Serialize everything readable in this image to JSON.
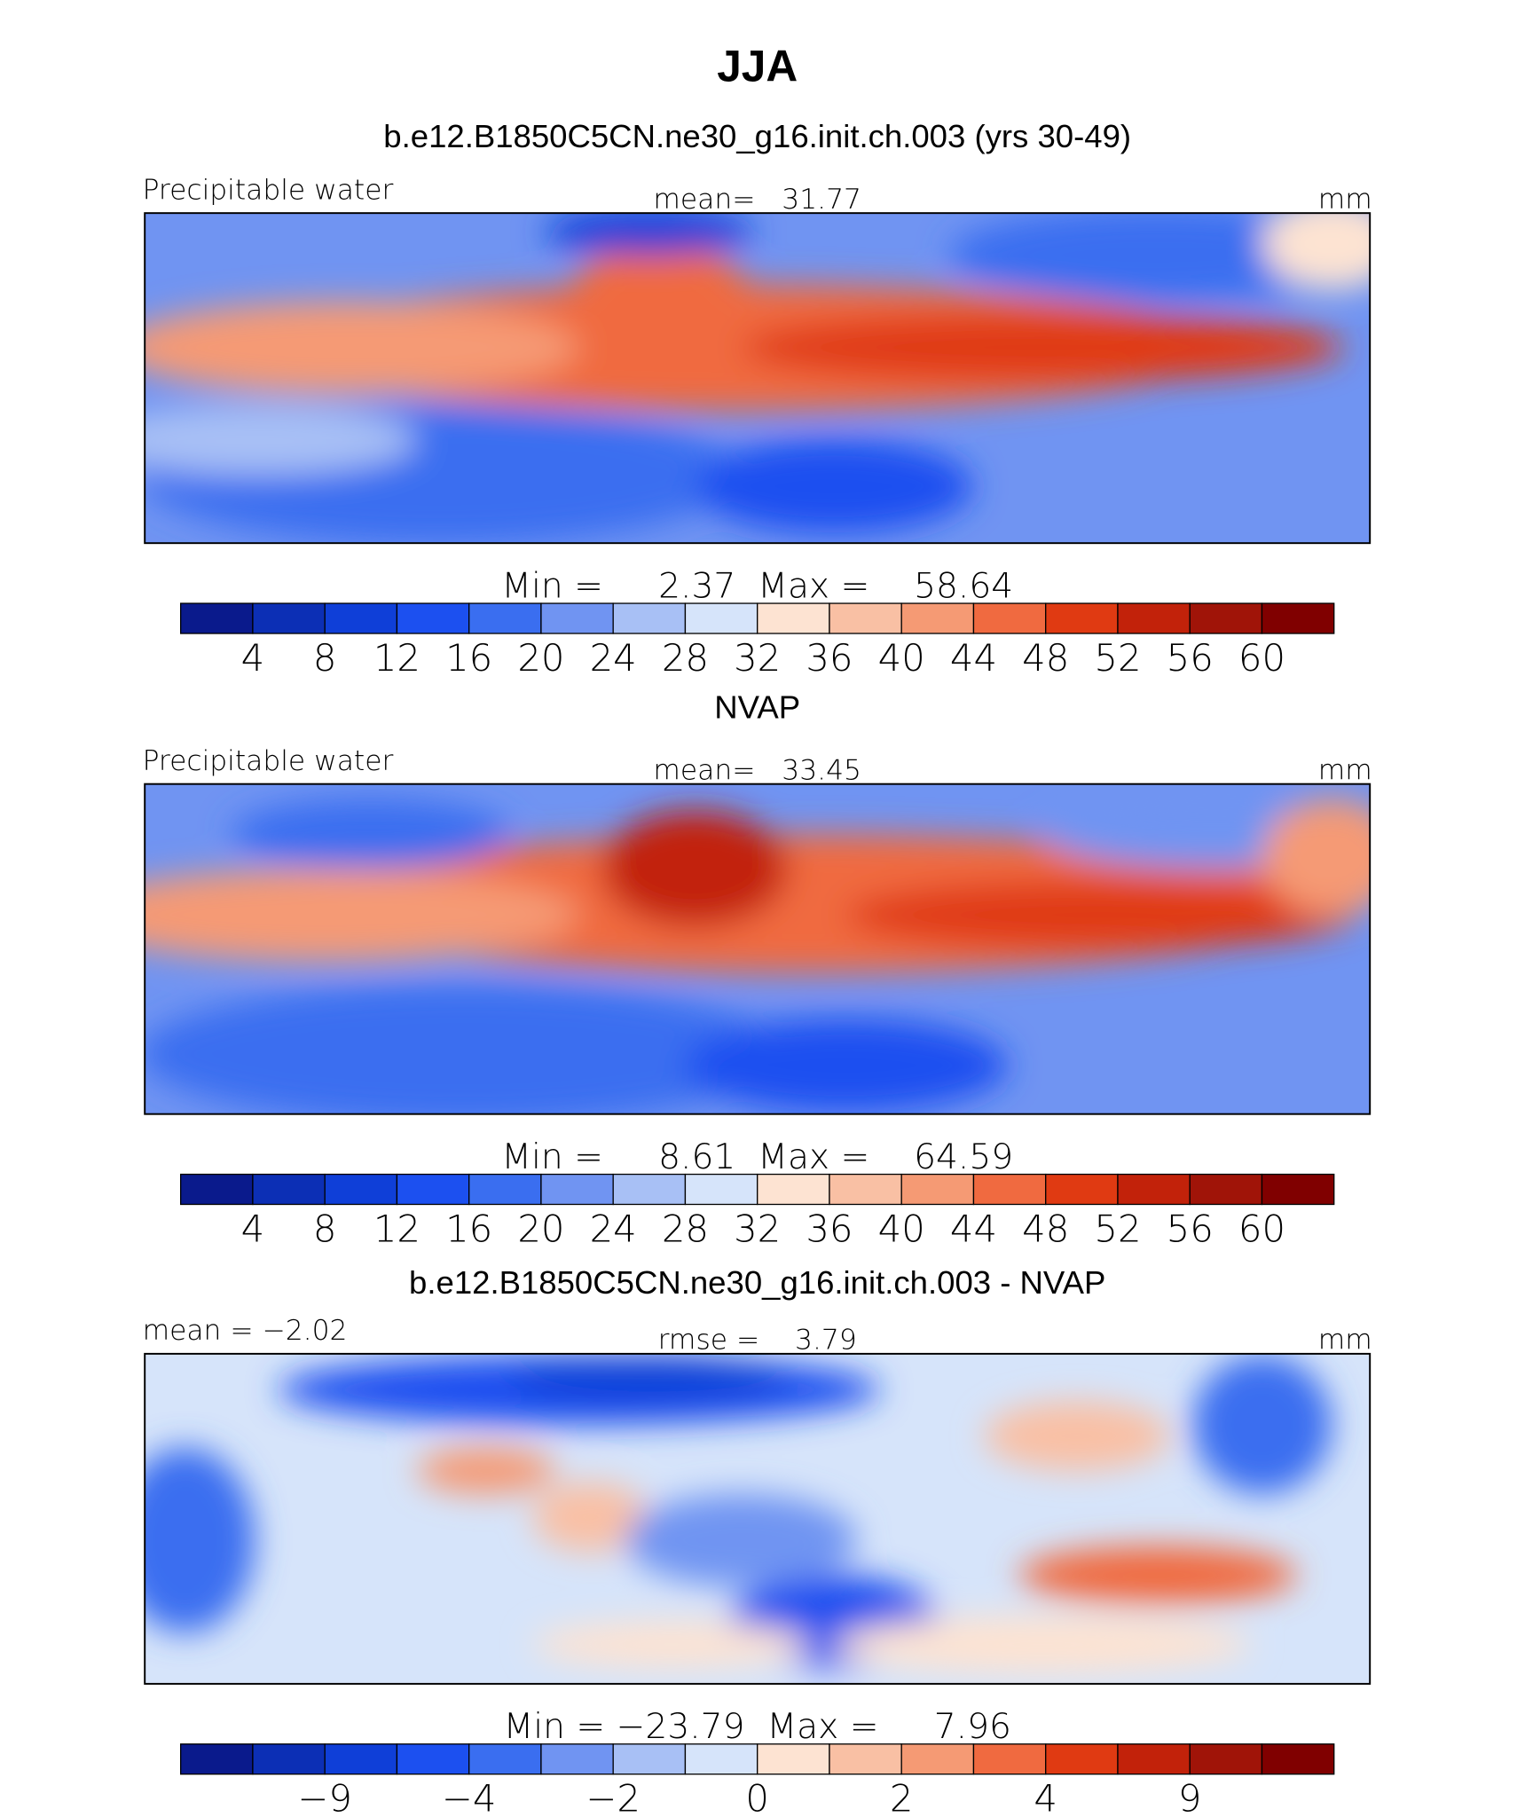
{
  "title": "JJA",
  "panels": [
    {
      "title": "b.e12.B1850C5CN.ne30_g16.init.ch.003 (yrs 30-49)",
      "left_label": "Precipitable water",
      "center_label": "mean=   31.77",
      "right_label": "mm",
      "stats": "Min =     2.37  Max =    58.64",
      "colorbar": {
        "labels": [
          "4",
          "8",
          "12",
          "16",
          "20",
          "24",
          "28",
          "32",
          "36",
          "40",
          "44",
          "48",
          "52",
          "56",
          "60"
        ],
        "colors": [
          "#0a1a8c",
          "#0c2fb5",
          "#0f3fd8",
          "#1c50f0",
          "#3a6ef0",
          "#7094f2",
          "#a8c0f5",
          "#d6e4fa",
          "#fde3d2",
          "#f9c0a4",
          "#f59a74",
          "#f06a40",
          "#e03a12",
          "#c2220a",
          "#a01408",
          "#800000"
        ]
      }
    },
    {
      "title": "NVAP",
      "left_label": "Precipitable water",
      "center_label": "mean=   33.45",
      "right_label": "mm",
      "stats": "Min =     8.61  Max =    64.59",
      "colorbar": {
        "labels": [
          "4",
          "8",
          "12",
          "16",
          "20",
          "24",
          "28",
          "32",
          "36",
          "40",
          "44",
          "48",
          "52",
          "56",
          "60"
        ],
        "colors": [
          "#0a1a8c",
          "#0c2fb5",
          "#0f3fd8",
          "#1c50f0",
          "#3a6ef0",
          "#7094f2",
          "#a8c0f5",
          "#d6e4fa",
          "#fde3d2",
          "#f9c0a4",
          "#f59a74",
          "#f06a40",
          "#e03a12",
          "#c2220a",
          "#a01408",
          "#800000"
        ]
      }
    },
    {
      "title": "b.e12.B1850C5CN.ne30_g16.init.ch.003 - NVAP",
      "left_label": "mean =   −2.02",
      "center_label": "rmse =    3.79",
      "right_label": "mm",
      "stats": "Min = −23.79  Max =     7.96",
      "colorbar": {
        "labels": [
          null,
          "−9",
          null,
          "−4",
          null,
          "−2",
          null,
          "0",
          null,
          "2",
          null,
          "4",
          null,
          "9",
          null
        ],
        "colors": [
          "#0a1a8c",
          "#0c2fb5",
          "#0f3fd8",
          "#1c50f0",
          "#3a6ef0",
          "#7094f2",
          "#a8c0f5",
          "#d6e4fa",
          "#fde3d2",
          "#f9c0a4",
          "#f59a74",
          "#f06a40",
          "#e03a12",
          "#c2220a",
          "#a01408",
          "#800000"
        ]
      }
    }
  ]
}
